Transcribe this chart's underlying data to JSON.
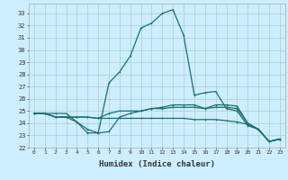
{
  "xlabel": "Humidex (Indice chaleur)",
  "bg_color": "#cceeff",
  "grid_color_major": "#aacccc",
  "grid_color_minor": "#bbdddd",
  "line_color": "#1a6e6e",
  "markersize": 2.5,
  "linewidth": 0.9,
  "xlim": [
    -0.5,
    23.5
  ],
  "ylim": [
    22,
    33.8
  ],
  "xticks": [
    0,
    1,
    2,
    3,
    4,
    5,
    6,
    7,
    8,
    9,
    10,
    11,
    12,
    13,
    14,
    15,
    16,
    17,
    18,
    19,
    20,
    21,
    22,
    23
  ],
  "yticks": [
    22,
    23,
    24,
    25,
    26,
    27,
    28,
    29,
    30,
    31,
    32,
    33
  ],
  "series": [
    [
      24.8,
      24.8,
      24.8,
      24.8,
      24.1,
      23.2,
      23.2,
      27.3,
      28.2,
      29.5,
      31.8,
      32.2,
      33.0,
      33.3,
      31.2,
      26.3,
      26.5,
      26.6,
      25.2,
      25.0,
      23.8,
      23.5,
      22.5,
      22.7
    ],
    [
      24.8,
      24.8,
      24.5,
      24.5,
      24.1,
      23.5,
      23.2,
      23.3,
      24.5,
      24.8,
      25.0,
      25.2,
      25.2,
      25.3,
      25.3,
      25.3,
      25.2,
      25.3,
      25.3,
      25.2,
      24.0,
      23.5,
      22.5,
      22.7
    ],
    [
      24.8,
      24.8,
      24.5,
      24.5,
      24.5,
      24.5,
      24.4,
      24.4,
      24.4,
      24.4,
      24.4,
      24.4,
      24.4,
      24.4,
      24.4,
      24.3,
      24.3,
      24.3,
      24.2,
      24.1,
      23.9,
      23.5,
      22.5,
      22.7
    ],
    [
      24.8,
      24.8,
      24.5,
      24.5,
      24.5,
      24.5,
      24.4,
      24.8,
      25.0,
      25.0,
      25.0,
      25.2,
      25.3,
      25.5,
      25.5,
      25.5,
      25.2,
      25.5,
      25.5,
      25.4,
      24.0,
      23.5,
      22.5,
      22.7
    ]
  ]
}
